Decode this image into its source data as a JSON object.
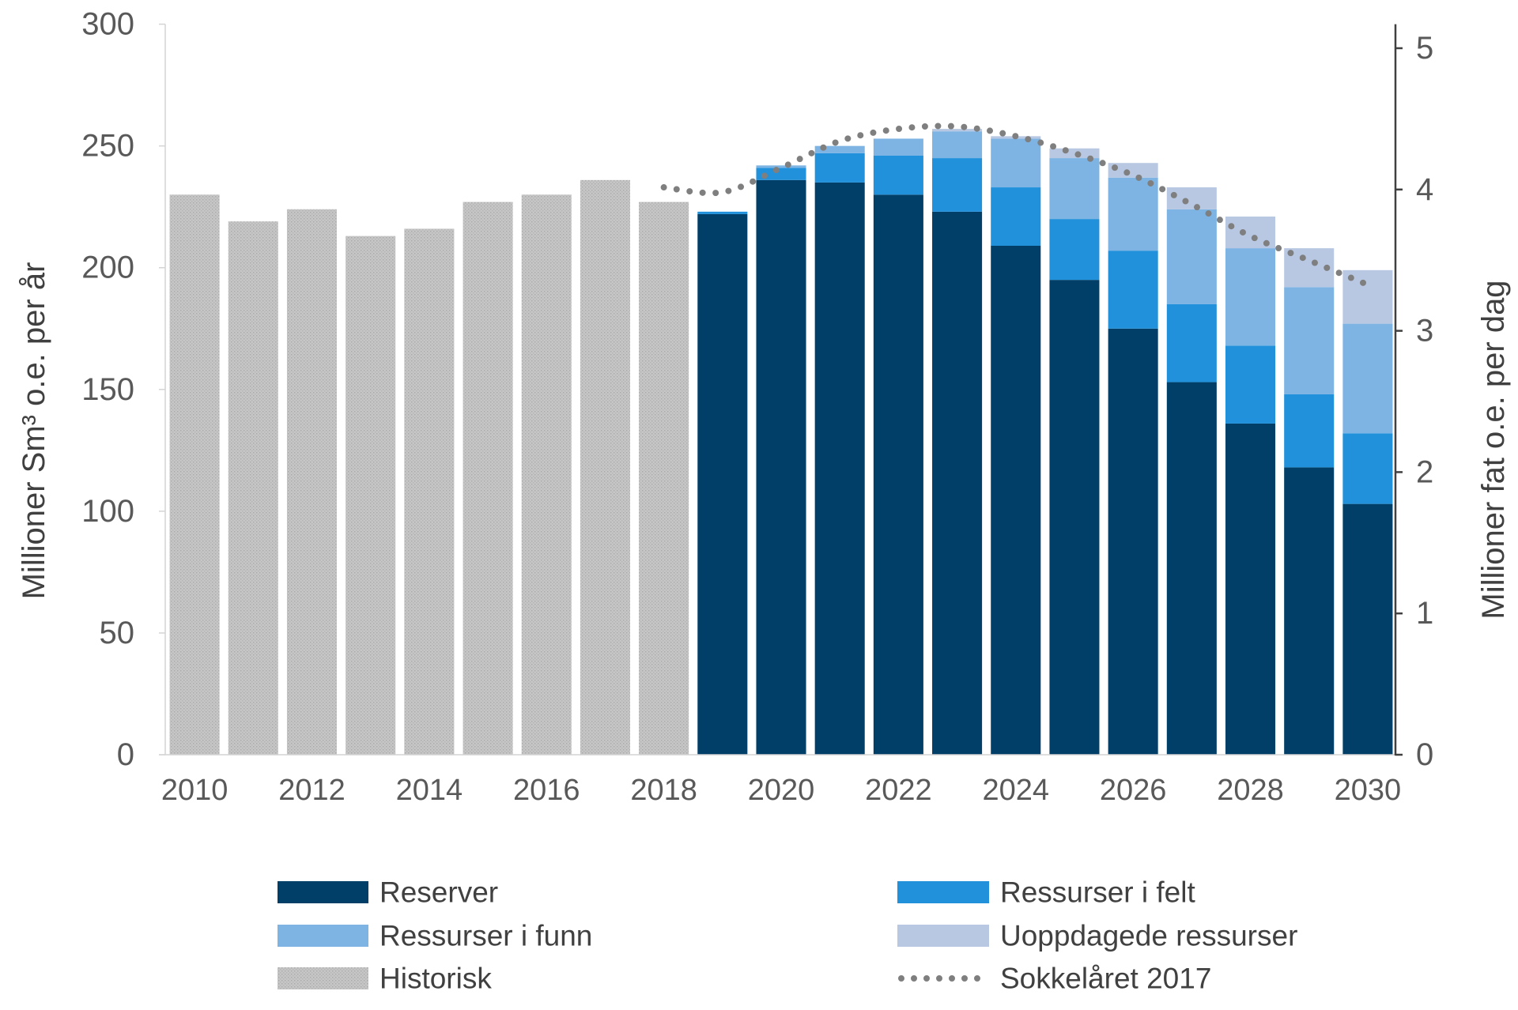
{
  "chart_data": {
    "type": "bar",
    "stacked": true,
    "x": [
      2010,
      2011,
      2012,
      2013,
      2014,
      2015,
      2016,
      2017,
      2018,
      2019,
      2020,
      2021,
      2022,
      2023,
      2024,
      2025,
      2026,
      2027,
      2028,
      2029,
      2030
    ],
    "xticks": [
      "2010",
      "2012",
      "2014",
      "2016",
      "2018",
      "2020",
      "2022",
      "2024",
      "2026",
      "2028",
      "2030"
    ],
    "ylabel": "Millioner Sm³ o.e. per år",
    "ylim": [
      0,
      300
    ],
    "yticks": [
      0,
      50,
      100,
      150,
      200,
      250,
      300
    ],
    "y2label": "Millioner fat o.e. per dag",
    "y2lim": [
      0,
      5.17
    ],
    "y2ticks": [
      0,
      1,
      2,
      3,
      4,
      5
    ],
    "grid": false,
    "legend": "bottom",
    "series": [
      {
        "name": "Reserver",
        "type": "bar",
        "color": "#023f68",
        "values": [
          null,
          null,
          null,
          null,
          null,
          null,
          null,
          null,
          null,
          222,
          236,
          235,
          230,
          223,
          209,
          195,
          175,
          153,
          136,
          118,
          103
        ]
      },
      {
        "name": "Ressurser i felt",
        "type": "bar",
        "color": "#2191db",
        "values": [
          null,
          null,
          null,
          null,
          null,
          null,
          null,
          null,
          null,
          1,
          5,
          12,
          16,
          22,
          24,
          25,
          32,
          32,
          32,
          30,
          29
        ]
      },
      {
        "name": "Ressurser i funn",
        "type": "bar",
        "color": "#7db4e4",
        "values": [
          null,
          null,
          null,
          null,
          null,
          null,
          null,
          null,
          null,
          0,
          1,
          3,
          7,
          11,
          20,
          25,
          30,
          39,
          40,
          44,
          45
        ]
      },
      {
        "name": "Uoppdagede ressurser",
        "type": "bar",
        "color": "#b8c8e2",
        "values": [
          null,
          null,
          null,
          null,
          null,
          null,
          null,
          null,
          null,
          0,
          0,
          0,
          0,
          1,
          1,
          4,
          6,
          9,
          13,
          16,
          22
        ]
      },
      {
        "name": "Historisk",
        "type": "bar",
        "color": "#c6c6c6",
        "texture": "stipple",
        "values": [
          230,
          219,
          224,
          213,
          216,
          227,
          230,
          236,
          227,
          null,
          null,
          null,
          null,
          null,
          null,
          null,
          null,
          null,
          null,
          null,
          null
        ]
      },
      {
        "name": "Sokkelåret 2017",
        "type": "line",
        "style": "dotted",
        "color": "#7f7f7f",
        "values": [
          null,
          null,
          null,
          null,
          null,
          null,
          null,
          null,
          233,
          231,
          241,
          252,
          257,
          258,
          254,
          247,
          238,
          226,
          213,
          203,
          193
        ]
      }
    ]
  }
}
